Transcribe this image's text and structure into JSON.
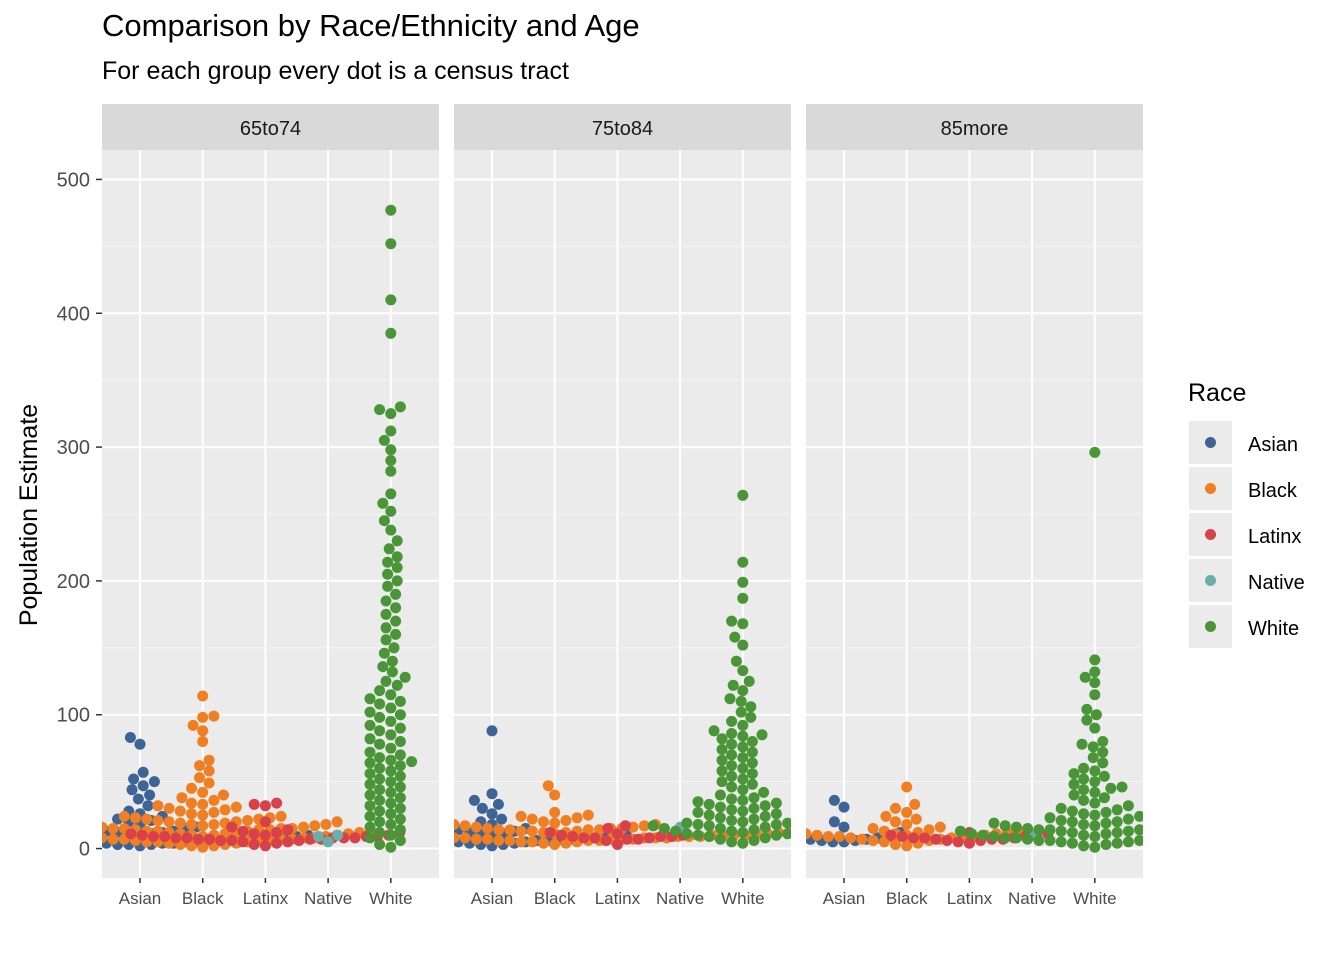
{
  "title": "Comparison by Race/Ethnicity and Age",
  "subtitle": "For each group every dot is a census tract",
  "colors": {
    "Asian": "#3e6496",
    "Black": "#ef7f22",
    "Latinx": "#d8404a",
    "Native": "#6aaeaa",
    "White": "#4a9538",
    "panel_bg": "#ebebeb",
    "strip_bg": "#d9d9d9",
    "grid": "#ffffff"
  },
  "chart_data": {
    "type": "scatter",
    "subtype": "beeswarm",
    "ylabel": "Population Estimate",
    "xlabel": "",
    "ylim": [
      -22,
      522
    ],
    "yticks": [
      0,
      100,
      200,
      300,
      400,
      500
    ],
    "categories": [
      "Asian",
      "Black",
      "Latinx",
      "Native",
      "White"
    ],
    "legend": {
      "title": "Race",
      "position": "right",
      "entries": [
        "Asian",
        "Black",
        "Latinx",
        "Native",
        "White"
      ]
    },
    "facets": [
      {
        "label": "65to74",
        "groups": {
          "Asian": [
            83,
            78,
            57,
            52,
            50,
            47,
            44,
            40,
            37,
            32,
            28,
            26,
            24,
            22,
            21,
            20,
            18,
            17,
            16,
            15,
            15,
            14,
            13,
            13,
            12,
            12,
            11,
            11,
            10,
            10,
            10,
            9,
            9,
            9,
            9,
            8,
            8,
            8,
            8,
            8,
            7,
            7,
            7,
            7,
            7,
            6,
            6,
            6,
            6,
            5,
            5,
            5,
            5,
            4,
            4,
            4,
            3,
            3,
            3,
            2
          ],
          "Black": [
            114,
            99,
            98,
            92,
            88,
            80,
            66,
            62,
            58,
            53,
            49,
            45,
            42,
            40,
            38,
            36,
            34,
            33,
            32,
            31,
            30,
            29,
            28,
            27,
            26,
            25,
            24,
            24,
            23,
            23,
            22,
            22,
            21,
            21,
            20,
            20,
            20,
            19,
            19,
            19,
            18,
            18,
            18,
            17,
            17,
            17,
            16,
            16,
            16,
            15,
            15,
            15,
            15,
            14,
            14,
            14,
            14,
            13,
            13,
            13,
            13,
            12,
            12,
            12,
            12,
            11,
            11,
            11,
            11,
            10,
            10,
            10,
            10,
            9,
            9,
            9,
            9,
            8,
            8,
            8,
            8,
            7,
            7,
            7,
            7,
            6,
            6,
            6,
            5,
            5,
            5,
            4,
            4,
            3,
            3,
            2,
            2,
            1
          ],
          "Latinx": [
            34,
            33,
            32,
            20,
            16,
            14,
            13,
            12,
            12,
            11,
            11,
            10,
            10,
            10,
            9,
            9,
            9,
            9,
            8,
            8,
            8,
            8,
            8,
            7,
            7,
            7,
            7,
            6,
            6,
            6,
            5,
            5,
            4,
            3,
            2
          ],
          "Native": [
            10,
            9,
            5
          ],
          "White": [
            477,
            452,
            410,
            385,
            330,
            328,
            325,
            312,
            305,
            298,
            290,
            282,
            265,
            258,
            252,
            245,
            238,
            230,
            224,
            218,
            214,
            210,
            205,
            200,
            196,
            190,
            185,
            180,
            175,
            170,
            165,
            160,
            156,
            150,
            146,
            140,
            136,
            132,
            128,
            125,
            122,
            118,
            115,
            112,
            110,
            108,
            105,
            102,
            100,
            98,
            95,
            92,
            90,
            88,
            85,
            82,
            80,
            78,
            75,
            72,
            70,
            68,
            66,
            65,
            64,
            62,
            60,
            58,
            56,
            54,
            52,
            50,
            48,
            46,
            44,
            42,
            40,
            38,
            36,
            34,
            32,
            30,
            28,
            26,
            24,
            22,
            20,
            18,
            16,
            14,
            12,
            10,
            8,
            6,
            3,
            1
          ]
        }
      },
      {
        "label": "75to84",
        "groups": {
          "Asian": [
            88,
            41,
            36,
            33,
            30,
            26,
            22,
            20,
            18,
            16,
            15,
            14,
            13,
            12,
            11,
            11,
            10,
            10,
            10,
            9,
            9,
            9,
            9,
            8,
            8,
            8,
            8,
            7,
            7,
            7,
            7,
            6,
            6,
            6,
            5,
            5,
            5,
            4,
            4,
            3,
            3,
            2
          ],
          "Black": [
            47,
            40,
            27,
            25,
            24,
            23,
            22,
            21,
            20,
            19,
            18,
            18,
            17,
            17,
            16,
            16,
            15,
            15,
            15,
            14,
            14,
            14,
            14,
            13,
            13,
            13,
            13,
            12,
            12,
            12,
            12,
            12,
            11,
            11,
            11,
            11,
            11,
            11,
            10,
            10,
            10,
            10,
            10,
            10,
            10,
            9,
            9,
            9,
            9,
            9,
            9,
            9,
            8,
            8,
            8,
            8,
            8,
            8,
            7,
            7,
            7,
            7,
            7,
            6,
            6,
            6,
            6,
            5,
            5,
            5,
            4,
            4,
            3
          ],
          "Latinx": [
            17,
            15,
            12,
            11,
            10,
            10,
            9,
            9,
            9,
            8,
            8,
            8,
            7,
            7,
            6,
            3
          ],
          "Native": [
            16
          ],
          "White": [
            264,
            214,
            199,
            187,
            170,
            168,
            158,
            152,
            140,
            133,
            125,
            122,
            118,
            112,
            110,
            106,
            102,
            98,
            95,
            92,
            88,
            86,
            85,
            84,
            82,
            80,
            78,
            76,
            74,
            72,
            70,
            68,
            66,
            64,
            62,
            60,
            58,
            56,
            54,
            52,
            50,
            48,
            46,
            44,
            42,
            40,
            38,
            37,
            36,
            35,
            34,
            33,
            32,
            31,
            30,
            29,
            28,
            27,
            26,
            25,
            24,
            23,
            22,
            21,
            20,
            20,
            19,
            19,
            18,
            18,
            17,
            17,
            16,
            16,
            15,
            15,
            14,
            14,
            13,
            13,
            12,
            12,
            11,
            11,
            10,
            10,
            9,
            8,
            7,
            6,
            5,
            4
          ]
        }
      },
      {
        "label": "85more",
        "groups": {
          "Asian": [
            36,
            31,
            20,
            16,
            12,
            10,
            9,
            8,
            8,
            7,
            7,
            6,
            6,
            5,
            5
          ],
          "Black": [
            46,
            33,
            30,
            27,
            24,
            22,
            20,
            18,
            16,
            15,
            14,
            13,
            13,
            12,
            12,
            12,
            11,
            11,
            11,
            10,
            10,
            10,
            9,
            9,
            9,
            8,
            8,
            8,
            7,
            7,
            6,
            6,
            5,
            4,
            3,
            2
          ],
          "Latinx": [
            12,
            11,
            10,
            10,
            9,
            9,
            8,
            8,
            8,
            7,
            7,
            7,
            6,
            6,
            5,
            4
          ],
          "Native": [
            10
          ],
          "White": [
            296,
            141,
            132,
            128,
            124,
            115,
            104,
            100,
            96,
            90,
            80,
            78,
            76,
            72,
            68,
            64,
            60,
            58,
            56,
            54,
            52,
            50,
            48,
            46,
            45,
            44,
            42,
            40,
            38,
            36,
            34,
            32,
            30,
            29,
            28,
            27,
            26,
            25,
            24,
            23,
            22,
            21,
            20,
            20,
            19,
            19,
            18,
            18,
            17,
            17,
            16,
            16,
            15,
            15,
            15,
            14,
            14,
            14,
            13,
            13,
            13,
            12,
            12,
            12,
            11,
            11,
            11,
            10,
            10,
            10,
            9,
            9,
            9,
            8,
            8,
            8,
            7,
            7,
            7,
            6,
            6,
            6,
            5,
            5,
            4,
            4,
            3,
            2,
            1
          ]
        }
      }
    ]
  }
}
